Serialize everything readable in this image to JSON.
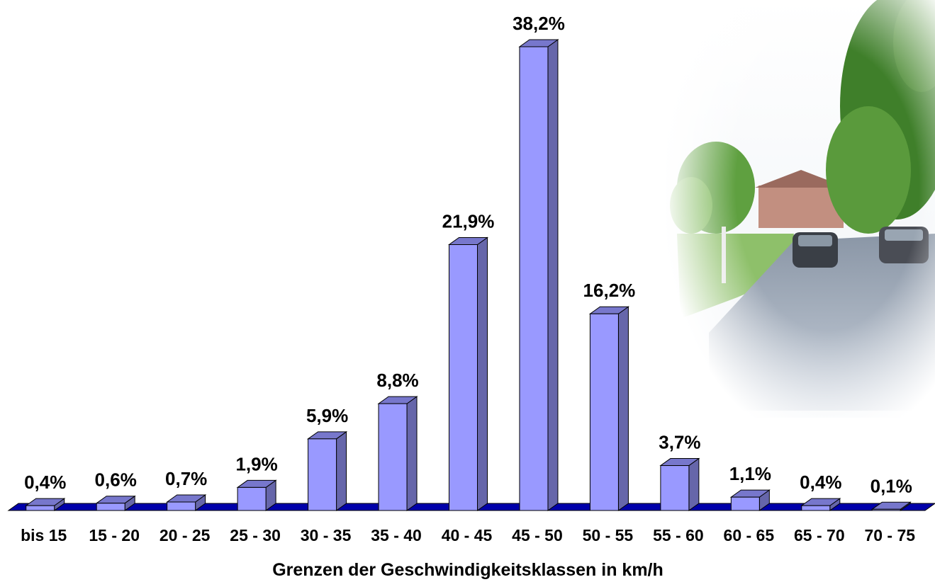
{
  "chart_data": {
    "type": "bar",
    "categories": [
      "bis 15",
      "15 - 20",
      "20 - 25",
      "25 - 30",
      "30 - 35",
      "35 - 40",
      "40 - 45",
      "45 - 50",
      "50 - 55",
      "55 - 60",
      "60 - 65",
      "65 - 70",
      "70 - 75"
    ],
    "values": [
      0.4,
      0.6,
      0.7,
      1.9,
      5.9,
      8.8,
      21.9,
      38.2,
      16.2,
      3.7,
      1.1,
      0.4,
      0.1
    ],
    "data_labels": [
      "0,4%",
      "0,6%",
      "0,7%",
      "1,9%",
      "5,9%",
      "8,8%",
      "21,9%",
      "38,2%",
      "16,2%",
      "3,7%",
      "1,1%",
      "0,4%",
      "0,1%"
    ],
    "title": "",
    "xlabel": "Grenzen der Geschwindigkeitsklassen in km/h",
    "ylabel": "",
    "ylim": [
      0,
      38.2
    ],
    "grid": false,
    "legend": "none",
    "bar_style": "3d",
    "colors": {
      "bar_front": "#9999ff",
      "bar_side": "#6666aa",
      "bar_top": "#7777cc",
      "floor": "#0000aa",
      "outline": "#000000"
    }
  },
  "photo": {
    "icon": "road-photo-icon"
  }
}
